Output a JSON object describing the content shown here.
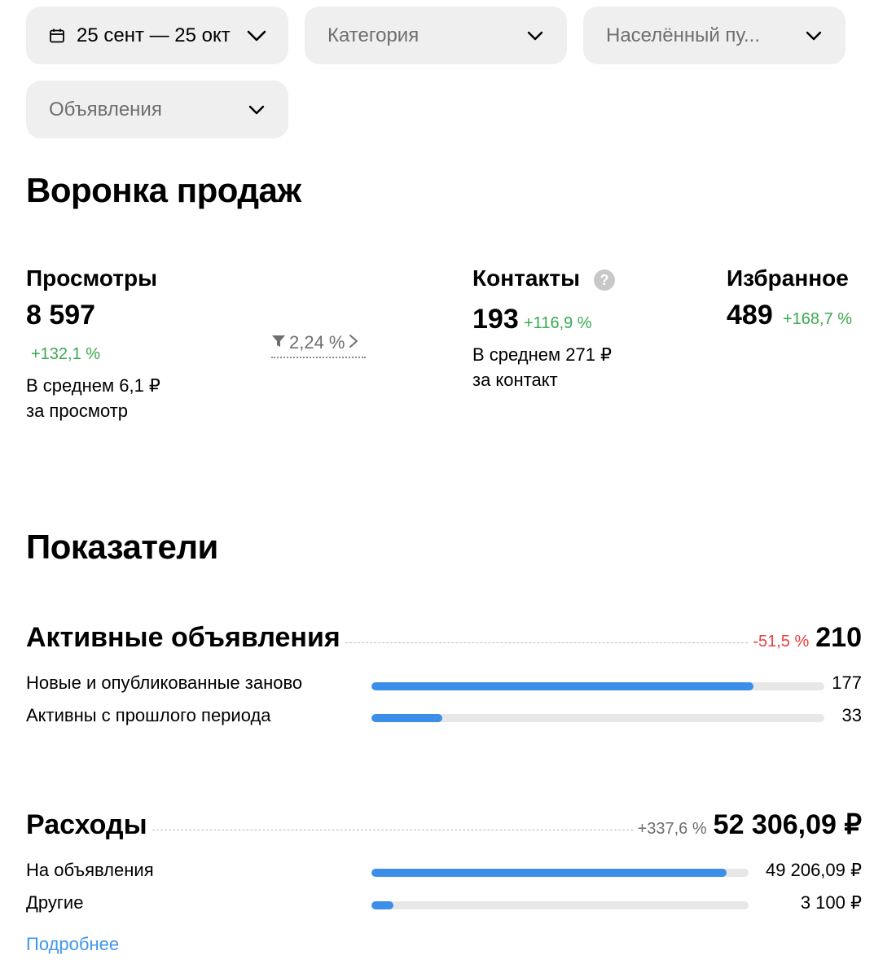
{
  "filters": {
    "date": "25 сент — 25 окт",
    "category": "Категория",
    "locality": "Населённый пу...",
    "listings": "Объявления"
  },
  "funnel": {
    "title": "Воронка продаж",
    "views": {
      "label": "Просмотры",
      "value": "8 597",
      "change": "+132,1 %",
      "avg_line1": "В среднем 6,1 ₽",
      "avg_line2": "за просмотр"
    },
    "conversion": "2,24 %",
    "contacts": {
      "label": "Контакты",
      "help": "?",
      "value": "193",
      "change": "+116,9 %",
      "avg_line1": "В среднем 271 ₽",
      "avg_line2": "за контакт"
    },
    "favorites": {
      "label": "Избранное",
      "value": "489",
      "change": "+168,7 %"
    }
  },
  "indicators": {
    "title": "Показатели",
    "active": {
      "title": "Активные объявления",
      "change": "-51,5 %",
      "value": "210",
      "rows": [
        {
          "label": "Новые и опубликованные заново",
          "value": "177",
          "fraction": 0.843
        },
        {
          "label": "Активны с прошлого периода",
          "value": "33",
          "fraction": 0.157
        }
      ]
    },
    "expenses": {
      "title": "Расходы",
      "change": "+337,6 %",
      "value": "52 306,09 ₽",
      "rows": [
        {
          "label": "На объявления",
          "value": "49 206,09 ₽",
          "fraction": 0.941
        },
        {
          "label": "Другие",
          "value": "3 100 ₽",
          "fraction": 0.059
        }
      ]
    },
    "more_link": "Подробнее"
  },
  "colors": {
    "positive": "#3aa950",
    "negative": "#e8403f",
    "bar": "#3c8ee8",
    "link": "#3f97ea"
  }
}
